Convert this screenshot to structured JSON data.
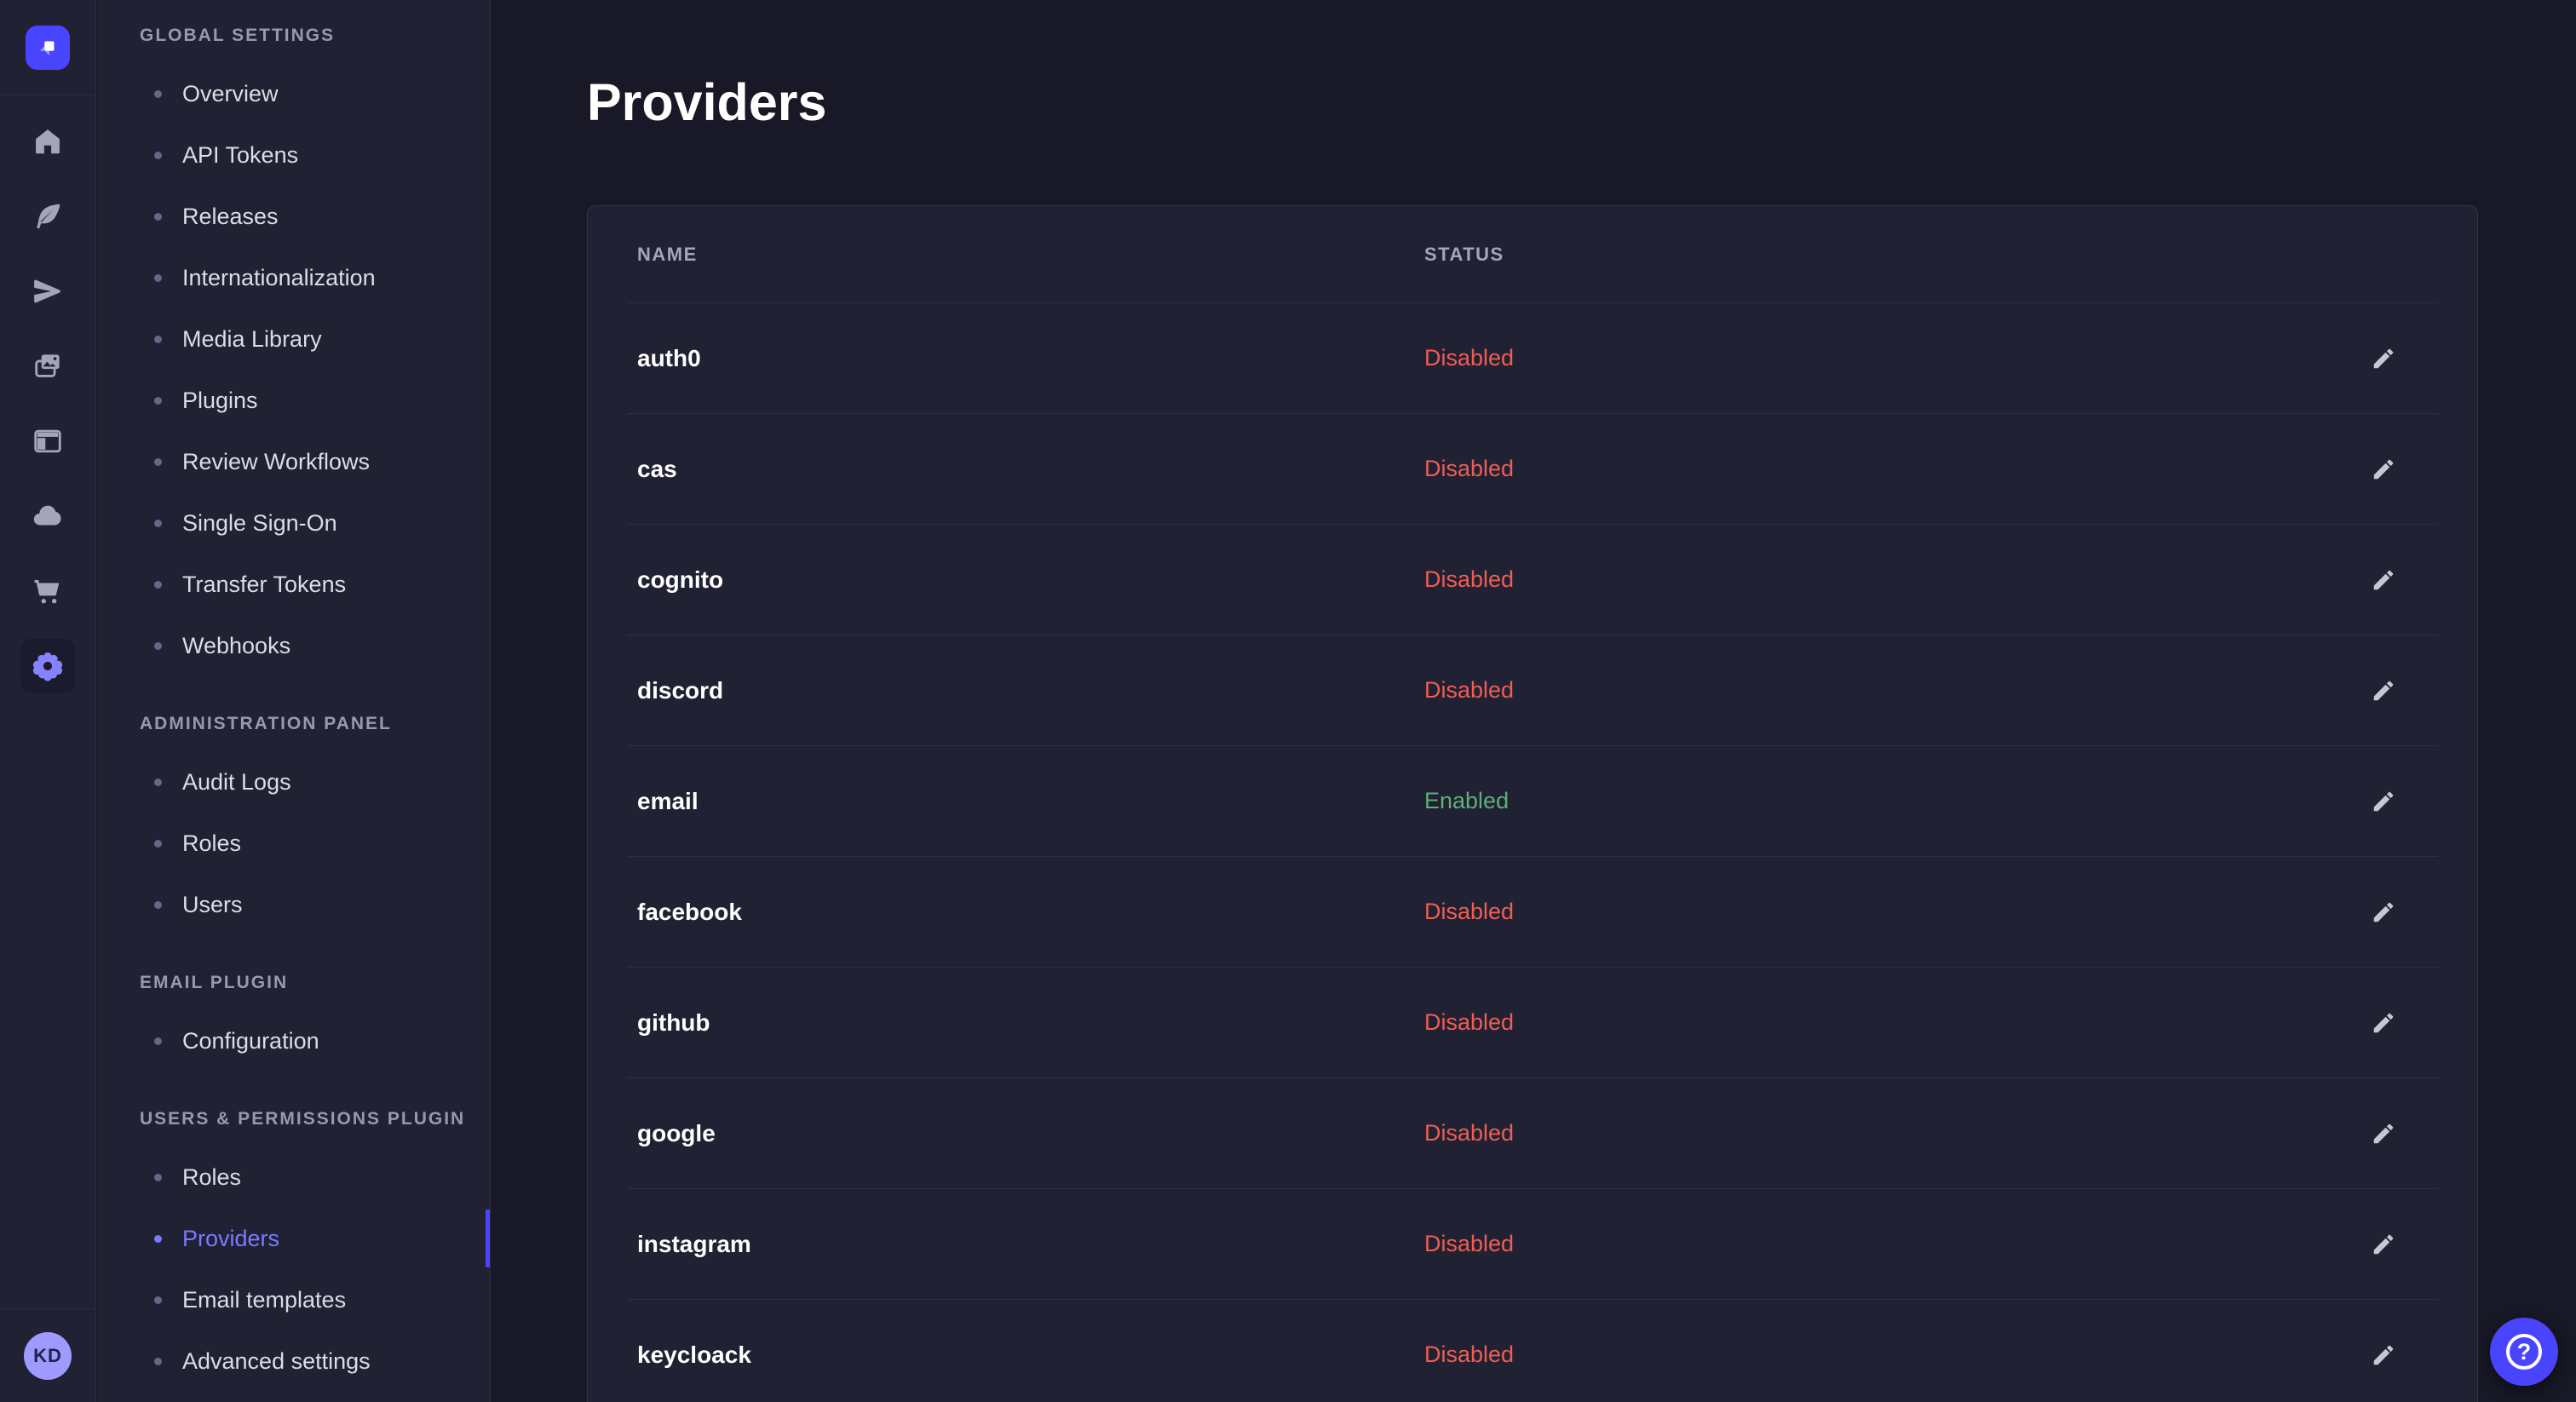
{
  "colors": {
    "accent": "#4945ff",
    "active_link": "#7b79ff",
    "status_enabled": "#5cb176",
    "status_disabled": "#ee5e52",
    "surface": "#212134",
    "background": "#181826"
  },
  "rail": {
    "logo_icon": "strapi-logo-icon",
    "nav_icons": [
      {
        "name": "home-icon",
        "active": false
      },
      {
        "name": "content-type-builder-icon",
        "active": false
      },
      {
        "name": "send-icon",
        "active": false
      },
      {
        "name": "media-library-icon",
        "active": false
      },
      {
        "name": "content-manager-icon",
        "active": false
      },
      {
        "name": "cloud-icon",
        "active": false
      },
      {
        "name": "marketplace-cart-icon",
        "active": false
      },
      {
        "name": "settings-gear-icon",
        "active": true
      }
    ],
    "user_initials": "KD"
  },
  "sidebar": {
    "sections": [
      {
        "title": "GLOBAL SETTINGS",
        "items": [
          {
            "label": "Overview"
          },
          {
            "label": "API Tokens"
          },
          {
            "label": "Releases"
          },
          {
            "label": "Internationalization"
          },
          {
            "label": "Media Library"
          },
          {
            "label": "Plugins"
          },
          {
            "label": "Review Workflows"
          },
          {
            "label": "Single Sign-On"
          },
          {
            "label": "Transfer Tokens"
          },
          {
            "label": "Webhooks"
          }
        ]
      },
      {
        "title": "ADMINISTRATION PANEL",
        "items": [
          {
            "label": "Audit Logs"
          },
          {
            "label": "Roles"
          },
          {
            "label": "Users"
          }
        ]
      },
      {
        "title": "EMAIL PLUGIN",
        "items": [
          {
            "label": "Configuration"
          }
        ]
      },
      {
        "title": "USERS & PERMISSIONS PLUGIN",
        "items": [
          {
            "label": "Roles"
          },
          {
            "label": "Providers",
            "active": true
          },
          {
            "label": "Email templates"
          },
          {
            "label": "Advanced settings"
          }
        ]
      }
    ]
  },
  "main": {
    "title": "Providers",
    "table": {
      "columns": [
        "NAME",
        "STATUS"
      ],
      "edit_icon": "pencil-icon",
      "rows": [
        {
          "name": "auth0",
          "status": "Disabled"
        },
        {
          "name": "cas",
          "status": "Disabled"
        },
        {
          "name": "cognito",
          "status": "Disabled"
        },
        {
          "name": "discord",
          "status": "Disabled"
        },
        {
          "name": "email",
          "status": "Enabled"
        },
        {
          "name": "facebook",
          "status": "Disabled"
        },
        {
          "name": "github",
          "status": "Disabled"
        },
        {
          "name": "google",
          "status": "Disabled"
        },
        {
          "name": "instagram",
          "status": "Disabled"
        },
        {
          "name": "keycloack",
          "status": "Disabled"
        }
      ]
    }
  },
  "help": {
    "icon": "help-icon",
    "glyph": "?"
  }
}
